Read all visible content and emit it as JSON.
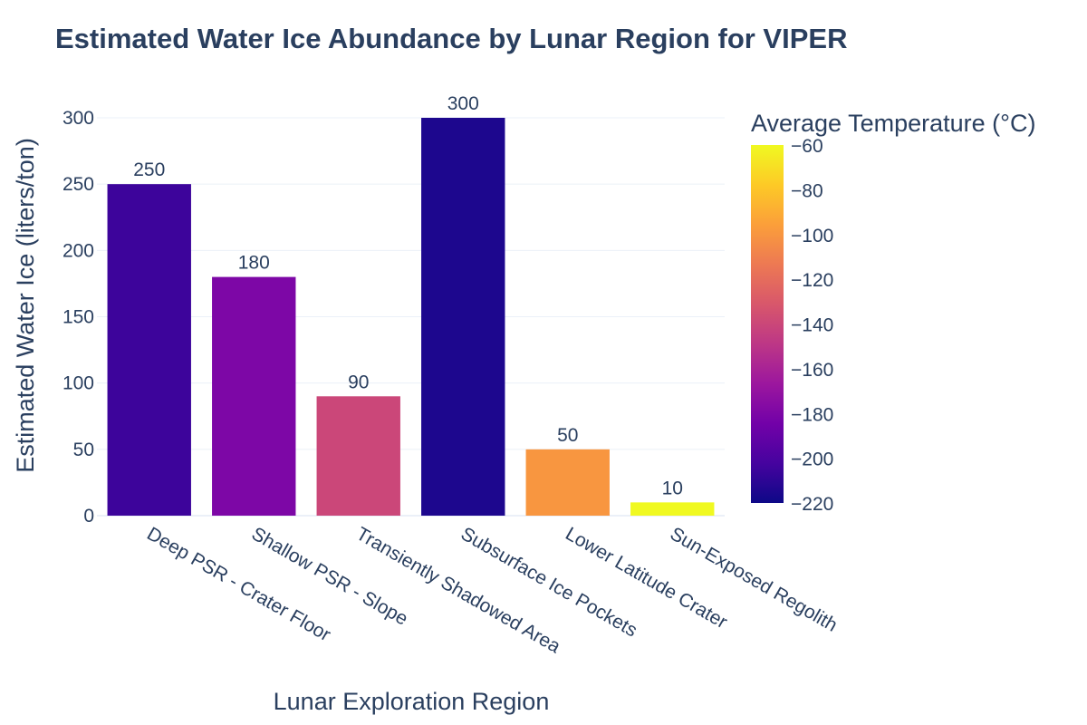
{
  "chart_data": {
    "type": "bar",
    "title": "Estimated Water Ice Abundance by Lunar Region for VIPER",
    "xlabel": "Lunar Exploration Region",
    "ylabel": "Estimated Water Ice (liters/ton)",
    "categories": [
      "Deep PSR - Crater Floor",
      "Shallow PSR - Slope",
      "Transiently Shadowed Area",
      "Subsurface Ice Pockets",
      "Lower Latitude Crater",
      "Sun-Exposed Regolith"
    ],
    "values": [
      250,
      180,
      90,
      300,
      50,
      10
    ],
    "value_labels": [
      "250",
      "180",
      "90",
      "300",
      "50",
      "10"
    ],
    "temperatures": [
      -205,
      -180,
      -140,
      -215,
      -100,
      -60
    ],
    "ylim": [
      0,
      300
    ],
    "yticks": [
      0,
      50,
      100,
      150,
      200,
      250,
      300
    ],
    "ytick_labels": [
      "0",
      "50",
      "100",
      "150",
      "200",
      "250",
      "300"
    ],
    "grid": true,
    "colorbar": {
      "title": "Average Temperature (°C)",
      "range": [
        -220,
        -60
      ],
      "ticks": [
        -60,
        -80,
        -100,
        -120,
        -140,
        -160,
        -180,
        -200,
        -220
      ],
      "tick_labels": [
        "−60",
        "−80",
        "−100",
        "−120",
        "−140",
        "−160",
        "−180",
        "−200",
        "−220"
      ],
      "colorscale": [
        "#0d0887",
        "#46039f",
        "#7201a8",
        "#9c179e",
        "#bd3786",
        "#d8576b",
        "#ed7953",
        "#fb9f3a",
        "#fdca26",
        "#f0f921"
      ]
    }
  }
}
